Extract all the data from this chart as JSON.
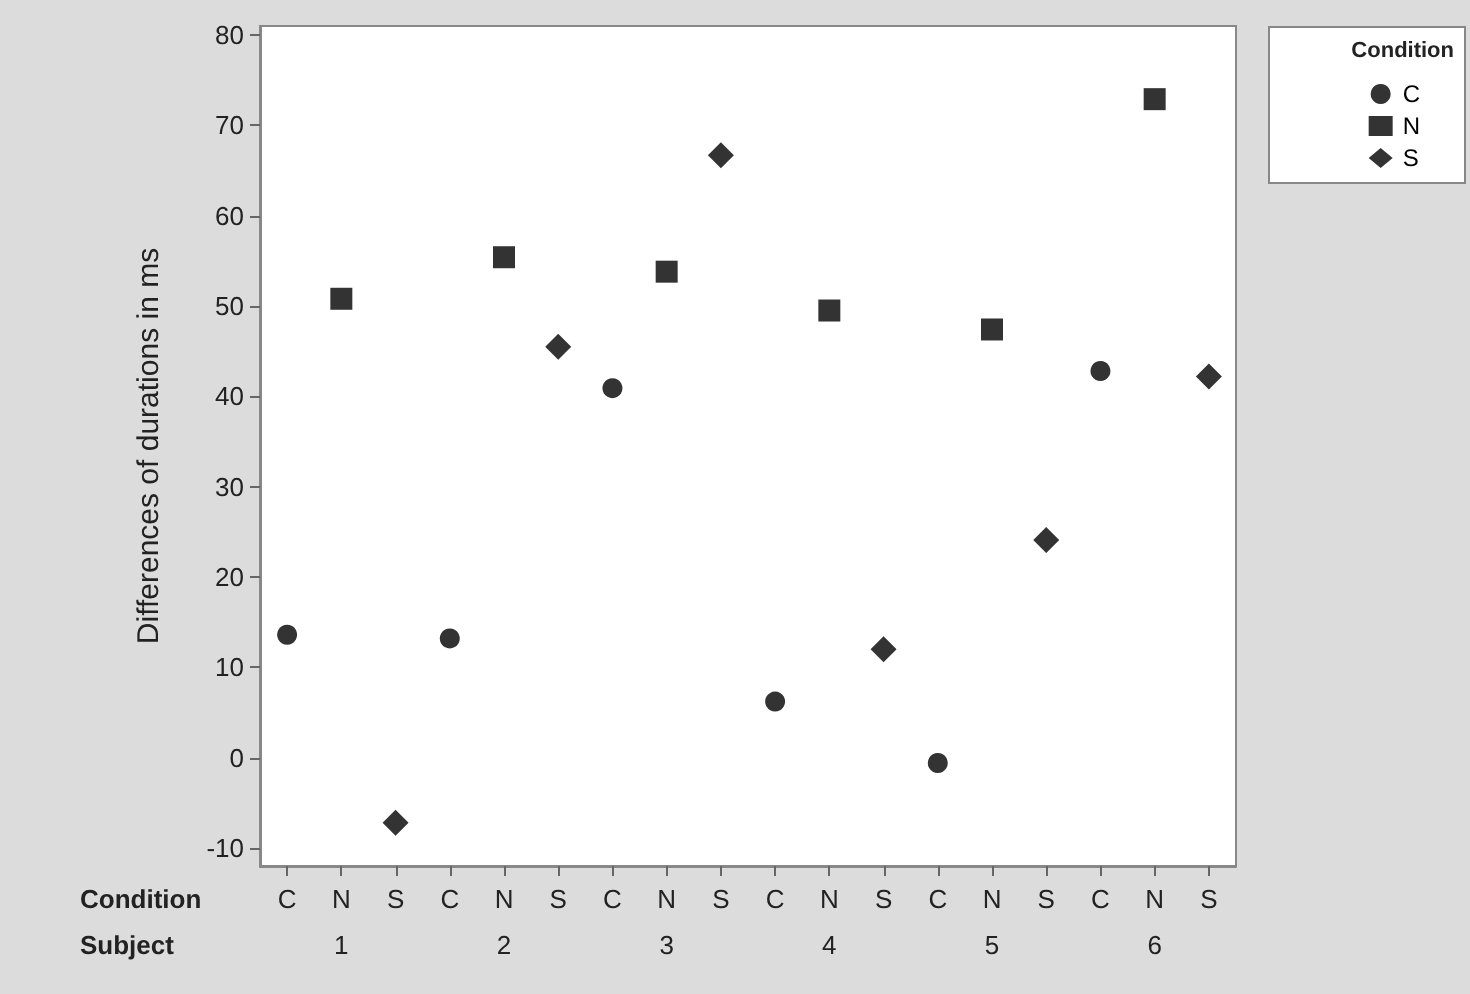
{
  "chart_data": {
    "type": "scatter",
    "ylabel": "Differences of durations in ms",
    "legend_title": "Condition",
    "categories": [
      "C",
      "N",
      "S",
      "C",
      "N",
      "S",
      "C",
      "N",
      "S",
      "C",
      "N",
      "S",
      "C",
      "N",
      "S",
      "C",
      "N",
      "S"
    ],
    "series": [
      {
        "name": "C",
        "color": "#000000",
        "marker": "circle",
        "values": [
          13.6,
          null,
          null,
          13.2,
          null,
          null,
          40.9,
          null,
          null,
          6.2,
          null,
          null,
          -0.6,
          null,
          null,
          42.8,
          null,
          null
        ]
      },
      {
        "name": "N",
        "color": "#000000",
        "marker": "square",
        "values": [
          null,
          50.8,
          null,
          null,
          55.4,
          null,
          null,
          53.8,
          null,
          null,
          49.5,
          null,
          null,
          47.4,
          null,
          null,
          72.9,
          null
        ]
      },
      {
        "name": "S",
        "color": "#000000",
        "marker": "diamond",
        "values": [
          null,
          null,
          -7.2,
          null,
          null,
          45.5,
          null,
          null,
          66.7,
          null,
          null,
          12.0,
          null,
          null,
          24.1,
          null,
          null,
          42.2
        ]
      }
    ],
    "ylim": [
      -12,
      81
    ],
    "yticks": [
      -10,
      0,
      10,
      20,
      30,
      40,
      50,
      60,
      70,
      80
    ],
    "annotations": [
      "Condition",
      "Subject",
      "1",
      "2",
      "3",
      "4",
      "5",
      "6"
    ],
    "grid": false,
    "legend": "top right"
  }
}
